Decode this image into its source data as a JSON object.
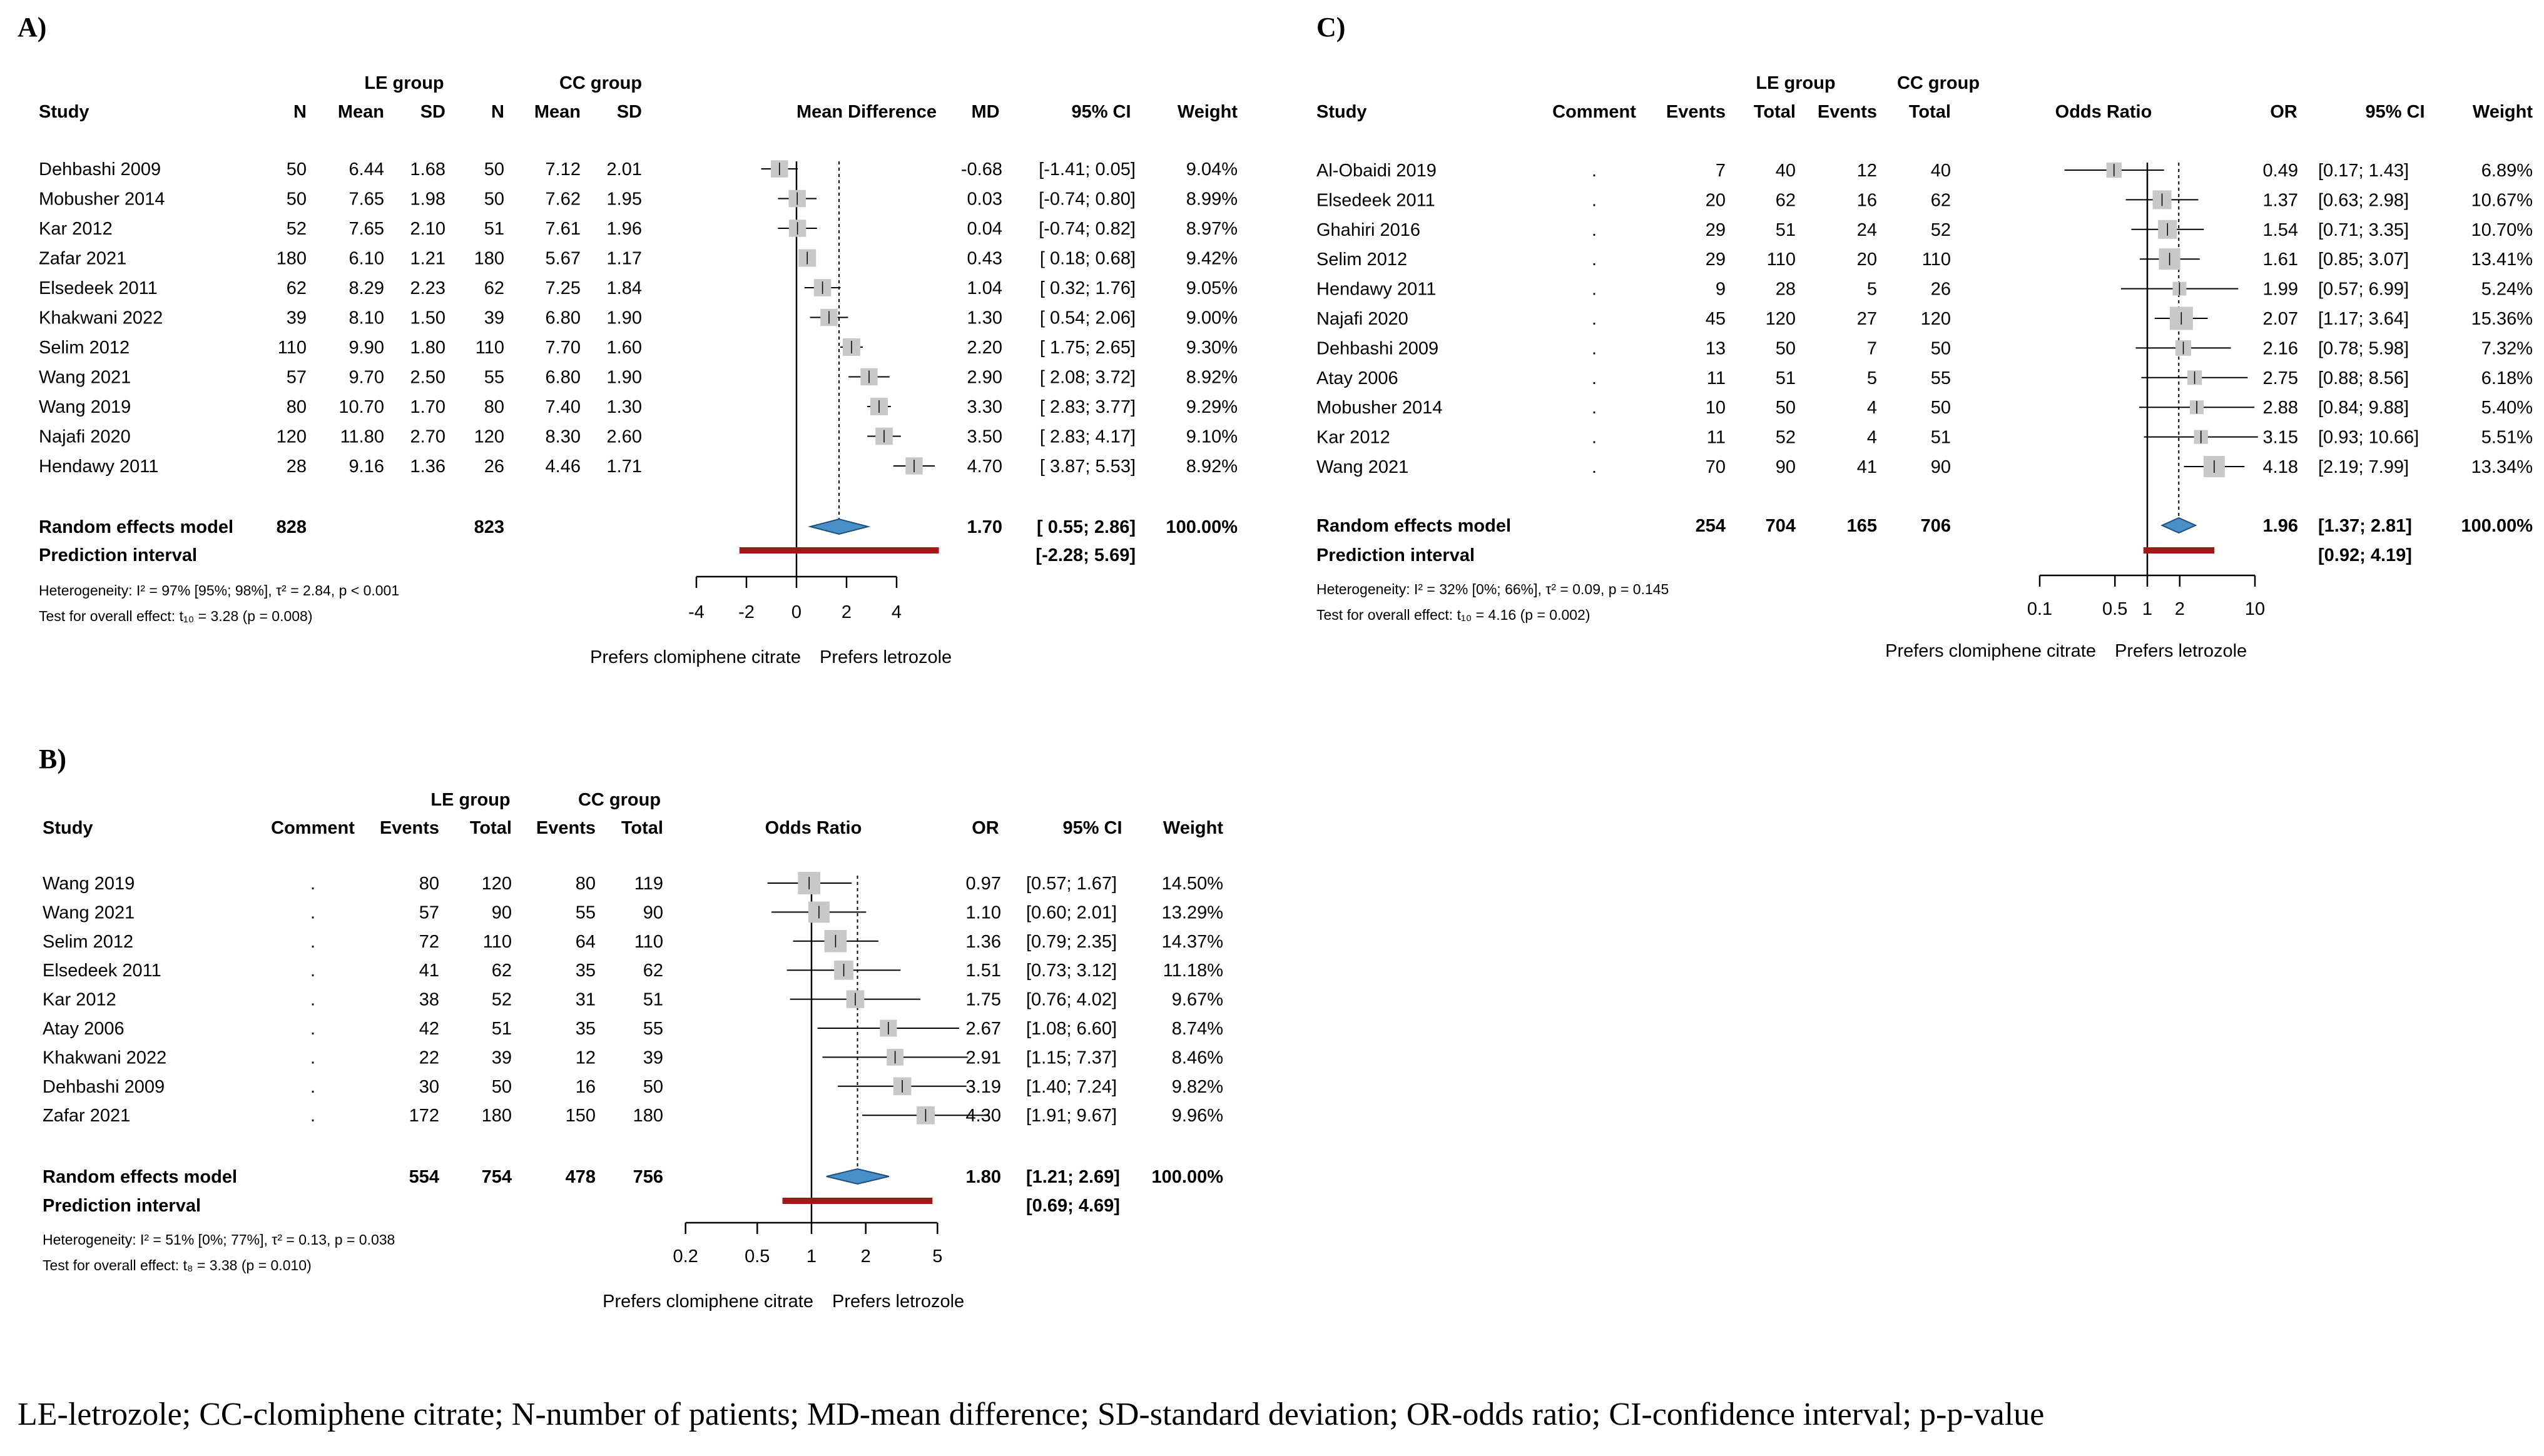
{
  "colors": {
    "box": "#c8c8c8",
    "diamond_fill": "#4a90c8",
    "diamond_stroke": "#1f4f7a",
    "prediction": "#a01818",
    "line": "#000000"
  },
  "footnote": "LE-letrozole; CC-clomiphene citrate; N-number of patients; MD-mean difference; SD-standard deviation; OR-odds ratio; CI-confidence interval; p-p-value",
  "chart_data": [
    {
      "id": "A",
      "panel_label": "A)",
      "type": "forest",
      "scale": "linear",
      "measure": "Mean Difference",
      "group_headers": [
        "LE group",
        "CC group"
      ],
      "headers": [
        "Study",
        "N",
        "Mean",
        "SD",
        "N",
        "Mean",
        "SD",
        "Mean Difference",
        "MD",
        "95% CI",
        "Weight"
      ],
      "studies": [
        {
          "cols": [
            "Dehbashi 2009",
            "50",
            "6.44",
            "1.68",
            "50",
            "7.12",
            "2.01"
          ],
          "est": -0.68,
          "lo": -1.41,
          "hi": 0.05,
          "w": 9.04,
          "est_label": "-0.68",
          "ci": "[-1.41; 0.05]",
          "weight": "9.04%"
        },
        {
          "cols": [
            "Mobusher 2014",
            "50",
            "7.65",
            "1.98",
            "50",
            "7.62",
            "1.95"
          ],
          "est": 0.03,
          "lo": -0.74,
          "hi": 0.8,
          "w": 8.99,
          "est_label": "0.03",
          "ci": "[-0.74; 0.80]",
          "weight": "8.99%"
        },
        {
          "cols": [
            "Kar 2012",
            "52",
            "7.65",
            "2.10",
            "51",
            "7.61",
            "1.96"
          ],
          "est": 0.04,
          "lo": -0.74,
          "hi": 0.82,
          "w": 8.97,
          "est_label": "0.04",
          "ci": "[-0.74; 0.82]",
          "weight": "8.97%"
        },
        {
          "cols": [
            "Zafar 2021",
            "180",
            "6.10",
            "1.21",
            "180",
            "5.67",
            "1.17"
          ],
          "est": 0.43,
          "lo": 0.18,
          "hi": 0.68,
          "w": 9.42,
          "est_label": "0.43",
          "ci": "[ 0.18; 0.68]",
          "weight": "9.42%"
        },
        {
          "cols": [
            "Elsedeek 2011",
            "62",
            "8.29",
            "2.23",
            "62",
            "7.25",
            "1.84"
          ],
          "est": 1.04,
          "lo": 0.32,
          "hi": 1.76,
          "w": 9.05,
          "est_label": "1.04",
          "ci": "[ 0.32; 1.76]",
          "weight": "9.05%"
        },
        {
          "cols": [
            "Khakwani 2022",
            "39",
            "8.10",
            "1.50",
            "39",
            "6.80",
            "1.90"
          ],
          "est": 1.3,
          "lo": 0.54,
          "hi": 2.06,
          "w": 9.0,
          "est_label": "1.30",
          "ci": "[ 0.54; 2.06]",
          "weight": "9.00%"
        },
        {
          "cols": [
            "Selim 2012",
            "110",
            "9.90",
            "1.80",
            "110",
            "7.70",
            "1.60"
          ],
          "est": 2.2,
          "lo": 1.75,
          "hi": 2.65,
          "w": 9.3,
          "est_label": "2.20",
          "ci": "[ 1.75; 2.65]",
          "weight": "9.30%"
        },
        {
          "cols": [
            "Wang 2021",
            "57",
            "9.70",
            "2.50",
            "55",
            "6.80",
            "1.90"
          ],
          "est": 2.9,
          "lo": 2.08,
          "hi": 3.72,
          "w": 8.92,
          "est_label": "2.90",
          "ci": "[ 2.08; 3.72]",
          "weight": "8.92%"
        },
        {
          "cols": [
            "Wang 2019",
            "80",
            "10.70",
            "1.70",
            "80",
            "7.40",
            "1.30"
          ],
          "est": 3.3,
          "lo": 2.83,
          "hi": 3.77,
          "w": 9.29,
          "est_label": "3.30",
          "ci": "[ 2.83; 3.77]",
          "weight": "9.29%"
        },
        {
          "cols": [
            "Najafi 2020",
            "120",
            "11.80",
            "2.70",
            "120",
            "8.30",
            "2.60"
          ],
          "est": 3.5,
          "lo": 2.83,
          "hi": 4.17,
          "w": 9.1,
          "est_label": "3.50",
          "ci": "[ 2.83; 4.17]",
          "weight": "9.10%"
        },
        {
          "cols": [
            "Hendawy 2011",
            "28",
            "9.16",
            "1.36",
            "26",
            "4.46",
            "1.71"
          ],
          "est": 4.7,
          "lo": 3.87,
          "hi": 5.53,
          "w": 8.92,
          "est_label": "4.70",
          "ci": "[ 3.87; 5.53]",
          "weight": "8.92%"
        }
      ],
      "pooled": {
        "label": "Random effects model",
        "cols": [
          "828",
          "823"
        ],
        "est": 1.7,
        "lo": 0.55,
        "hi": 2.86,
        "est_label": "1.70",
        "ci": "[ 0.55; 2.86]",
        "weight": "100.00%"
      },
      "prediction": {
        "label": "Prediction interval",
        "lo": -2.28,
        "hi": 5.69,
        "ci": "[-2.28; 5.69]"
      },
      "heterogeneity": "Heterogeneity: I² = 97% [95%; 98%], τ² = 2.84, p < 0.001",
      "overall_test": "Test for overall effect: t₁₀ = 3.28 (p = 0.008)",
      "null_value": 0,
      "axis_range": [
        -4,
        4
      ],
      "ticks": [
        -4,
        -2,
        0,
        2,
        4
      ],
      "tick_labels": [
        "-4",
        "-2",
        "0",
        "2",
        "4"
      ],
      "favours": [
        "Prefers clomiphene citrate",
        "Prefers letrozole"
      ]
    },
    {
      "id": "B",
      "panel_label": "B)",
      "type": "forest",
      "scale": "log",
      "measure": "Odds Ratio",
      "group_headers": [
        "LE group",
        "CC group"
      ],
      "headers": [
        "Study",
        "Comment",
        "Events",
        "Total",
        "Events",
        "Total",
        "Odds Ratio",
        "OR",
        "95% CI",
        "Weight"
      ],
      "studies": [
        {
          "cols": [
            "Wang 2019",
            ".",
            "80",
            "120",
            "80",
            "119"
          ],
          "est": 0.97,
          "lo": 0.57,
          "hi": 1.67,
          "w": 14.5,
          "est_label": "0.97",
          "ci": "[0.57; 1.67]",
          "weight": "14.50%"
        },
        {
          "cols": [
            "Wang 2021",
            ".",
            "57",
            "90",
            "55",
            "90"
          ],
          "est": 1.1,
          "lo": 0.6,
          "hi": 2.01,
          "w": 13.29,
          "est_label": "1.10",
          "ci": "[0.60; 2.01]",
          "weight": "13.29%"
        },
        {
          "cols": [
            "Selim 2012",
            ".",
            "72",
            "110",
            "64",
            "110"
          ],
          "est": 1.36,
          "lo": 0.79,
          "hi": 2.35,
          "w": 14.37,
          "est_label": "1.36",
          "ci": "[0.79; 2.35]",
          "weight": "14.37%"
        },
        {
          "cols": [
            "Elsedeek 2011",
            ".",
            "41",
            "62",
            "35",
            "62"
          ],
          "est": 1.51,
          "lo": 0.73,
          "hi": 3.12,
          "w": 11.18,
          "est_label": "1.51",
          "ci": "[0.73; 3.12]",
          "weight": "11.18%"
        },
        {
          "cols": [
            "Kar 2012",
            ".",
            "38",
            "52",
            "31",
            "51"
          ],
          "est": 1.75,
          "lo": 0.76,
          "hi": 4.02,
          "w": 9.67,
          "est_label": "1.75",
          "ci": "[0.76; 4.02]",
          "weight": "9.67%"
        },
        {
          "cols": [
            "Atay 2006",
            ".",
            "42",
            "51",
            "35",
            "55"
          ],
          "est": 2.67,
          "lo": 1.08,
          "hi": 6.6,
          "w": 8.74,
          "est_label": "2.67",
          "ci": "[1.08; 6.60]",
          "weight": "8.74%"
        },
        {
          "cols": [
            "Khakwani 2022",
            ".",
            "22",
            "39",
            "12",
            "39"
          ],
          "est": 2.91,
          "lo": 1.15,
          "hi": 7.37,
          "w": 8.46,
          "est_label": "2.91",
          "ci": "[1.15; 7.37]",
          "weight": "8.46%"
        },
        {
          "cols": [
            "Dehbashi 2009",
            ".",
            "30",
            "50",
            "16",
            "50"
          ],
          "est": 3.19,
          "lo": 1.4,
          "hi": 7.24,
          "w": 9.82,
          "est_label": "3.19",
          "ci": "[1.40; 7.24]",
          "weight": "9.82%"
        },
        {
          "cols": [
            "Zafar 2021",
            ".",
            "172",
            "180",
            "150",
            "180"
          ],
          "est": 4.3,
          "lo": 1.91,
          "hi": 9.67,
          "w": 9.96,
          "est_label": "4.30",
          "ci": "[1.91; 9.67]",
          "weight": "9.96%"
        }
      ],
      "pooled": {
        "label": "Random effects model",
        "cols": [
          "554",
          "754",
          "478",
          "756"
        ],
        "est": 1.8,
        "lo": 1.21,
        "hi": 2.69,
        "est_label": "1.80",
        "ci": "[1.21; 2.69]",
        "weight": "100.00%"
      },
      "prediction": {
        "label": "Prediction interval",
        "lo": 0.69,
        "hi": 4.69,
        "ci": "[0.69; 4.69]"
      },
      "heterogeneity": "Heterogeneity: I² = 51% [0%; 77%], τ² = 0.13, p = 0.038",
      "overall_test": "Test for overall effect: t₈ = 3.38 (p = 0.010)",
      "null_value": 1,
      "axis_range": [
        0.2,
        5
      ],
      "ticks": [
        0.2,
        0.5,
        1,
        2,
        5
      ],
      "tick_labels": [
        "0.2",
        "0.5",
        "1",
        "2",
        "5"
      ],
      "favours": [
        "Prefers clomiphene citrate",
        "Prefers letrozole"
      ]
    },
    {
      "id": "C",
      "panel_label": "C)",
      "type": "forest",
      "scale": "log",
      "measure": "Odds Ratio",
      "group_headers": [
        "LE group",
        "CC group"
      ],
      "headers": [
        "Study",
        "Comment",
        "Events",
        "Total",
        "Events",
        "Total",
        "Odds Ratio",
        "OR",
        "95% CI",
        "Weight"
      ],
      "studies": [
        {
          "cols": [
            "Al-Obaidi 2019",
            ".",
            "7",
            "40",
            "12",
            "40"
          ],
          "est": 0.49,
          "lo": 0.17,
          "hi": 1.43,
          "w": 6.89,
          "est_label": "0.49",
          "ci": "[0.17; 1.43]",
          "weight": "6.89%"
        },
        {
          "cols": [
            "Elsedeek 2011",
            ".",
            "20",
            "62",
            "16",
            "62"
          ],
          "est": 1.37,
          "lo": 0.63,
          "hi": 2.98,
          "w": 10.67,
          "est_label": "1.37",
          "ci": "[0.63; 2.98]",
          "weight": "10.67%"
        },
        {
          "cols": [
            "Ghahiri 2016",
            ".",
            "29",
            "51",
            "24",
            "52"
          ],
          "est": 1.54,
          "lo": 0.71,
          "hi": 3.35,
          "w": 10.7,
          "est_label": "1.54",
          "ci": "[0.71; 3.35]",
          "weight": "10.70%"
        },
        {
          "cols": [
            "Selim 2012",
            ".",
            "29",
            "110",
            "20",
            "110"
          ],
          "est": 1.61,
          "lo": 0.85,
          "hi": 3.07,
          "w": 13.41,
          "est_label": "1.61",
          "ci": "[0.85; 3.07]",
          "weight": "13.41%"
        },
        {
          "cols": [
            "Hendawy 2011",
            ".",
            "9",
            "28",
            "5",
            "26"
          ],
          "est": 1.99,
          "lo": 0.57,
          "hi": 6.99,
          "w": 5.24,
          "est_label": "1.99",
          "ci": "[0.57; 6.99]",
          "weight": "5.24%"
        },
        {
          "cols": [
            "Najafi 2020",
            ".",
            "45",
            "120",
            "27",
            "120"
          ],
          "est": 2.07,
          "lo": 1.17,
          "hi": 3.64,
          "w": 15.36,
          "est_label": "2.07",
          "ci": "[1.17; 3.64]",
          "weight": "15.36%"
        },
        {
          "cols": [
            "Dehbashi 2009",
            ".",
            "13",
            "50",
            "7",
            "50"
          ],
          "est": 2.16,
          "lo": 0.78,
          "hi": 5.98,
          "w": 7.32,
          "est_label": "2.16",
          "ci": "[0.78; 5.98]",
          "weight": "7.32%"
        },
        {
          "cols": [
            "Atay 2006",
            ".",
            "11",
            "51",
            "5",
            "55"
          ],
          "est": 2.75,
          "lo": 0.88,
          "hi": 8.56,
          "w": 6.18,
          "est_label": "2.75",
          "ci": "[0.88; 8.56]",
          "weight": "6.18%"
        },
        {
          "cols": [
            "Mobusher 2014",
            ".",
            "10",
            "50",
            "4",
            "50"
          ],
          "est": 2.88,
          "lo": 0.84,
          "hi": 9.88,
          "w": 5.4,
          "est_label": "2.88",
          "ci": "[0.84; 9.88]",
          "weight": "5.40%"
        },
        {
          "cols": [
            "Kar 2012",
            ".",
            "11",
            "52",
            "4",
            "51"
          ],
          "est": 3.15,
          "lo": 0.93,
          "hi": 10.66,
          "w": 5.51,
          "est_label": "3.15",
          "ci": "[0.93; 10.66]",
          "weight": "5.51%"
        },
        {
          "cols": [
            "Wang 2021",
            ".",
            "70",
            "90",
            "41",
            "90"
          ],
          "est": 4.18,
          "lo": 2.19,
          "hi": 7.99,
          "w": 13.34,
          "est_label": "4.18",
          "ci": "[2.19; 7.99]",
          "weight": "13.34%"
        }
      ],
      "pooled": {
        "label": "Random effects model",
        "cols": [
          "254",
          "704",
          "165",
          "706"
        ],
        "est": 1.96,
        "lo": 1.37,
        "hi": 2.81,
        "est_label": "1.96",
        "ci": "[1.37; 2.81]",
        "weight": "100.00%"
      },
      "prediction": {
        "label": "Prediction interval",
        "lo": 0.92,
        "hi": 4.19,
        "ci": "[0.92; 4.19]"
      },
      "heterogeneity": "Heterogeneity: I² = 32% [0%; 66%], τ² = 0.09, p = 0.145",
      "overall_test": "Test for overall effect: t₁₀ = 4.16 (p = 0.002)",
      "null_value": 1,
      "axis_range": [
        0.1,
        10
      ],
      "ticks": [
        0.1,
        0.5,
        1,
        2,
        10
      ],
      "tick_labels": [
        "0.1",
        "0.5",
        "1",
        "2",
        "10"
      ],
      "favours": [
        "Prefers clomiphene citrate",
        "Prefers letrozole"
      ]
    }
  ]
}
